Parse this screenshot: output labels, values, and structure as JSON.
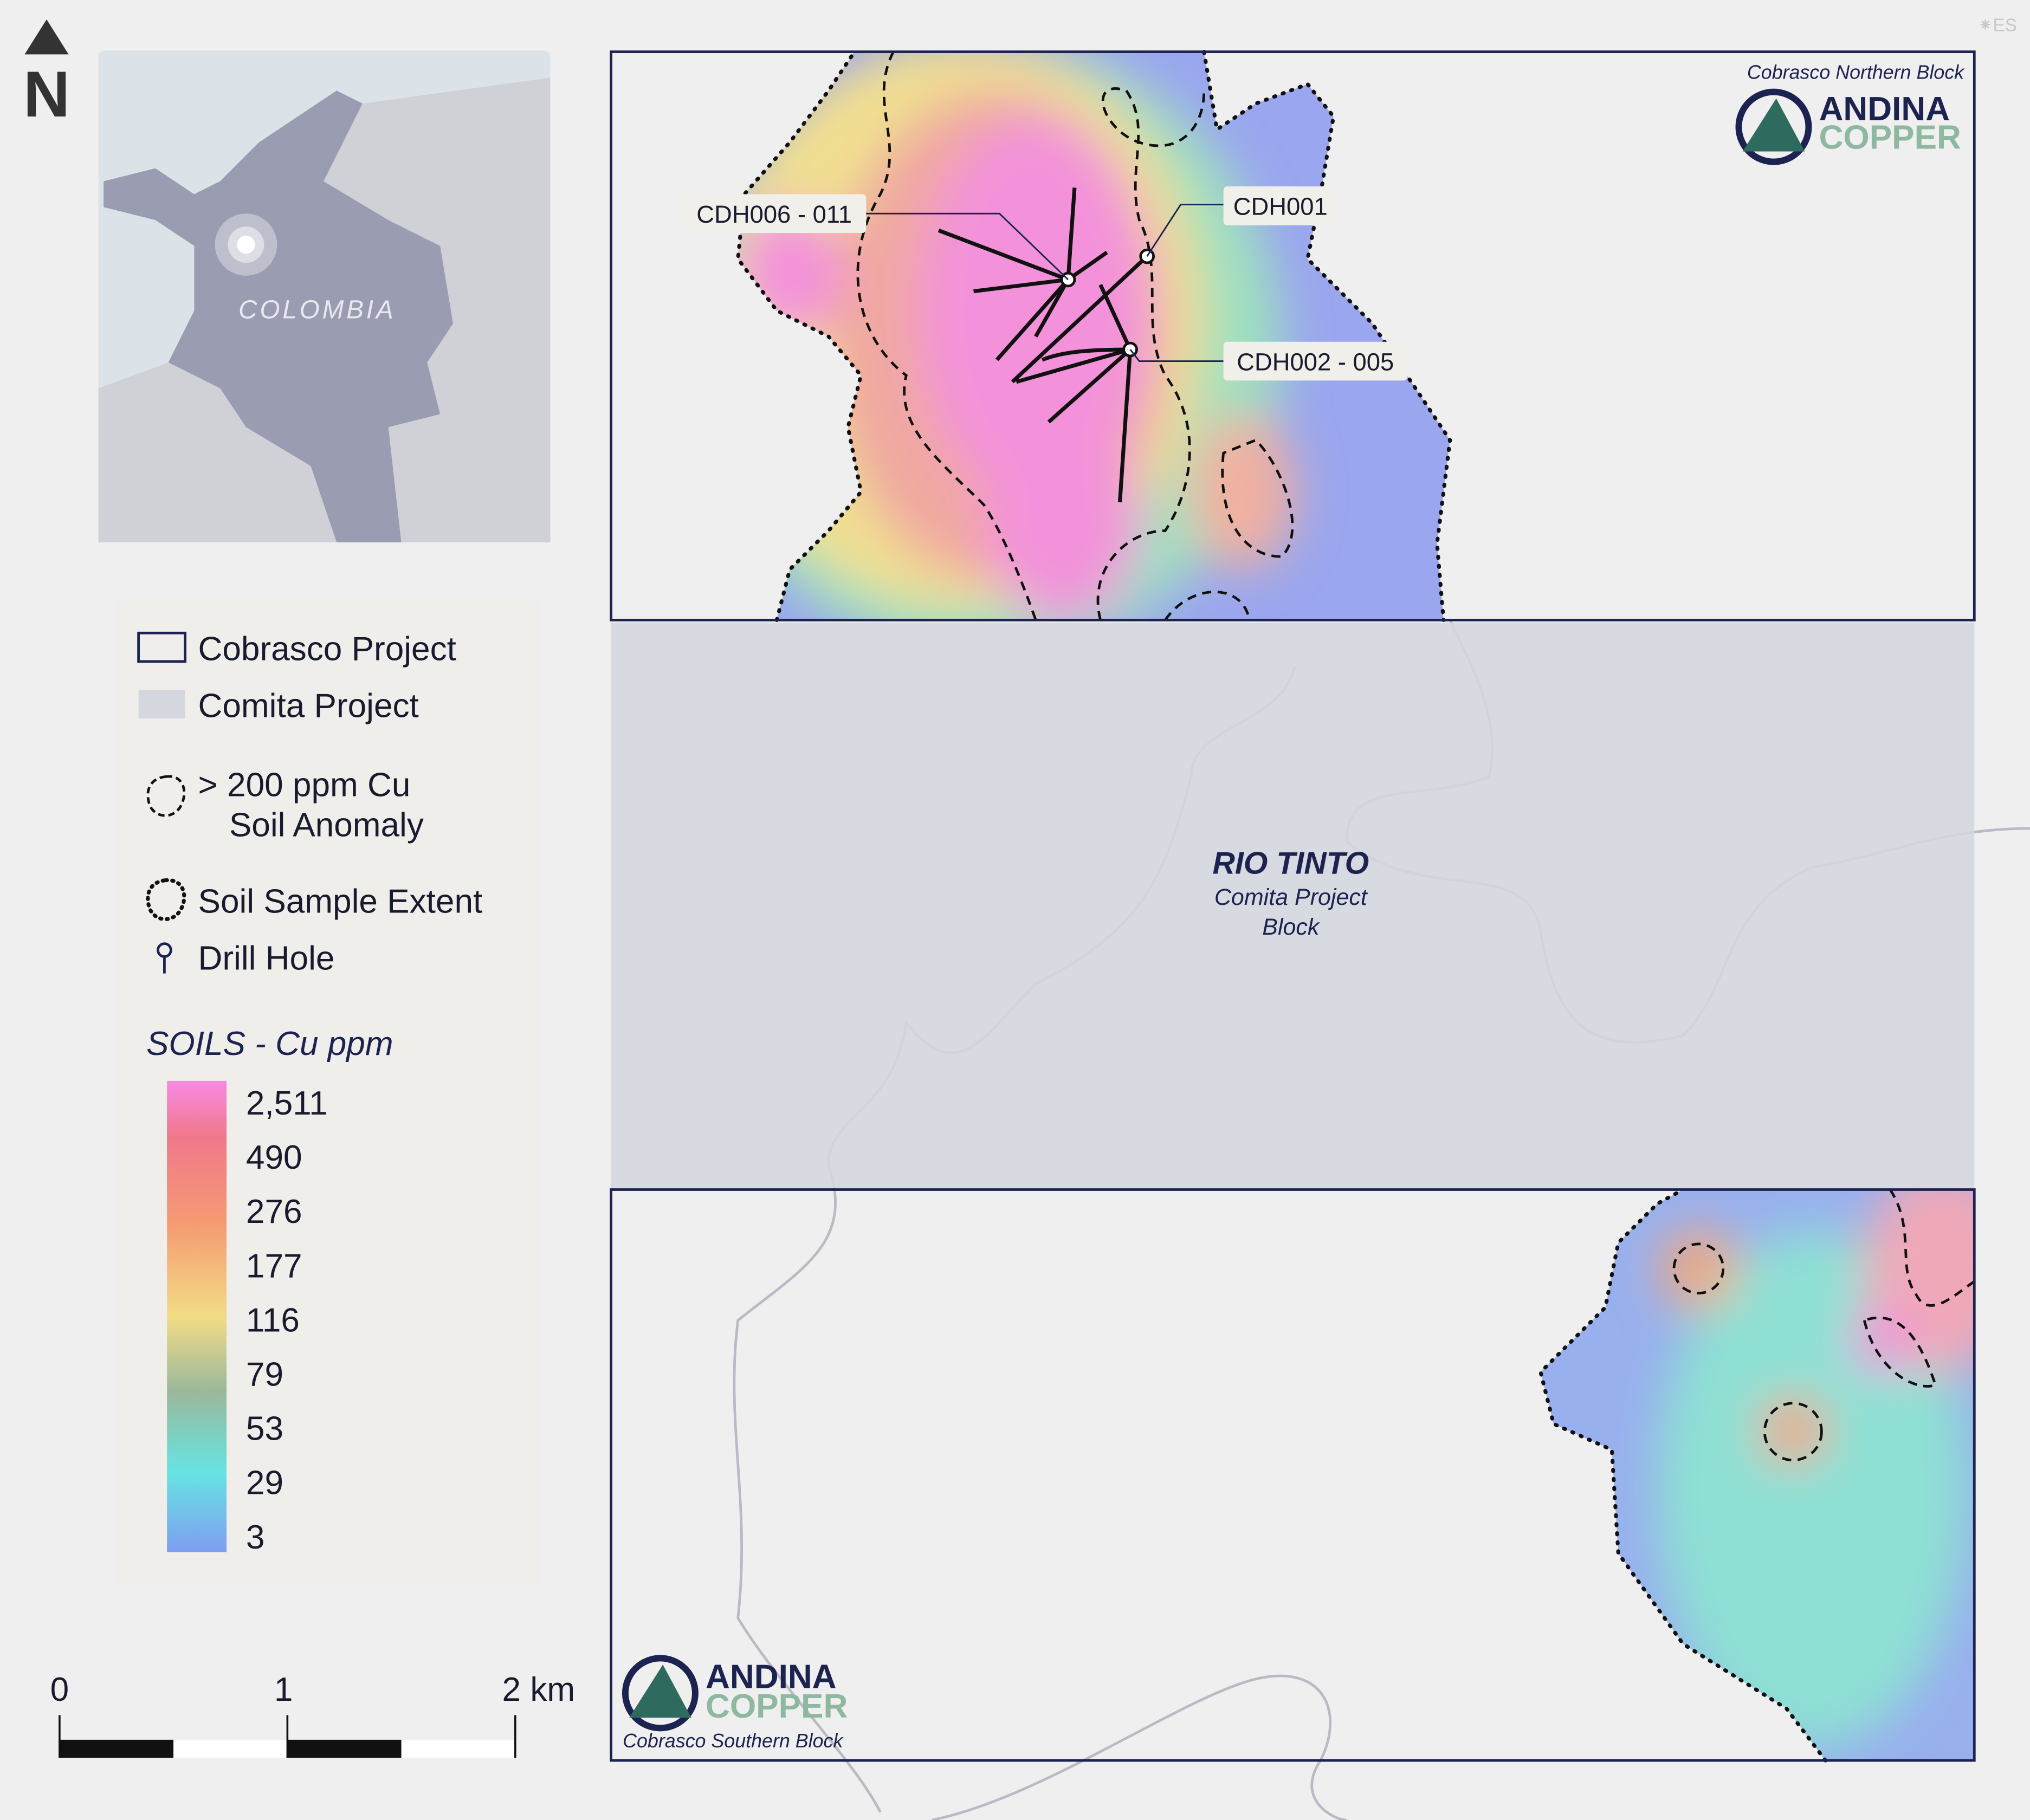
{
  "north_arrow": {
    "label": "N"
  },
  "inset_map": {
    "label": "COLOMBIA"
  },
  "legend": {
    "items": [
      "Cobrasco Project",
      "Comita Project",
      "> 200 ppm Cu",
      "Soil Anomaly",
      "Soil Sample Extent",
      "Drill Hole"
    ],
    "scale_title": "SOILS - Cu ppm",
    "scale_labels": [
      "2,511",
      "490",
      "276",
      "177",
      "116",
      "79",
      "53",
      "29",
      "3"
    ]
  },
  "scale_bar": {
    "labels": [
      "0",
      "1",
      "2 km"
    ]
  },
  "map": {
    "northern_block": {
      "caption": "Cobrasco Northern Block",
      "logo": [
        "ANDINA",
        "COPPER"
      ]
    },
    "drill_holes": [
      "CDH006 - 011",
      "CDH001",
      "CDH002 - 005"
    ],
    "comita": {
      "title": "RIO TINTO",
      "subtitle": [
        "Comita Project",
        "Block"
      ]
    },
    "southern_block": {
      "caption": "Cobrasco Southern Block",
      "logo": [
        "ANDINA",
        "COPPER"
      ]
    }
  },
  "watermark": "⁕ES"
}
